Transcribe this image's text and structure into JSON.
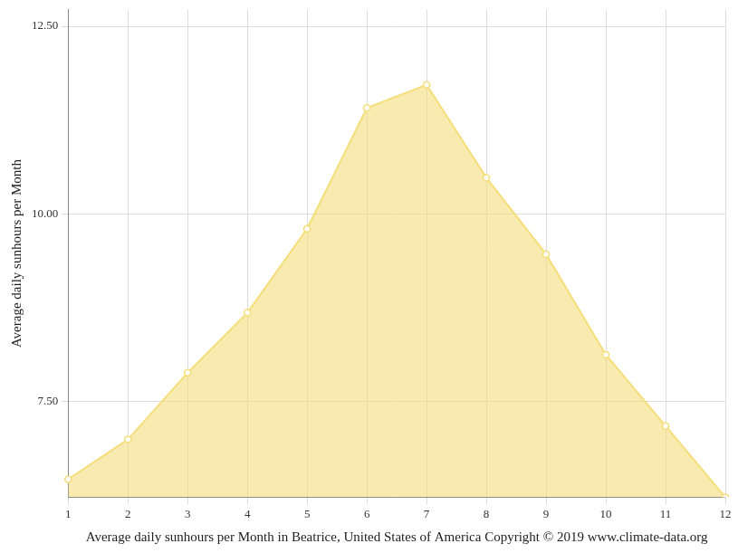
{
  "chart_data": {
    "type": "line",
    "x_label": "Average daily sunhours per Month in Beatrice, United States of America Copyright © 2019 www.climate-data.org",
    "y_label": "Average daily sunhours per Month",
    "categories": [
      "1",
      "2",
      "3",
      "4",
      "5",
      "6",
      "7",
      "8",
      "9",
      "10",
      "11",
      "12"
    ],
    "values": [
      6.46,
      6.99,
      7.88,
      8.68,
      9.8,
      11.41,
      11.72,
      10.48,
      9.46,
      8.12,
      7.17,
      6.22
    ],
    "color": "#f5de7a",
    "marker": "circle",
    "ylim": [
      6.22,
      12.72
    ],
    "yticks": [
      {
        "value": 7.5,
        "label": "7.50"
      },
      {
        "value": 10,
        "label": "10.00"
      },
      {
        "value": 12.5,
        "label": "12.50"
      }
    ],
    "grid": true
  }
}
